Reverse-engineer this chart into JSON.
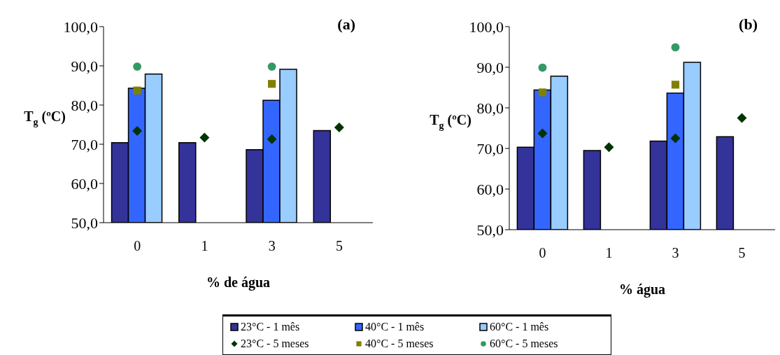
{
  "chart_data": [
    {
      "type": "bar",
      "title": "(a)",
      "xlabel": "% de água",
      "ylabel": "T$_{g}$ (ºC)",
      "categories": [
        "0",
        "1",
        "3",
        "5"
      ],
      "ylim": [
        50,
        100
      ],
      "yticks": [
        {
          "value": 50,
          "label": "50,0"
        },
        {
          "value": 60,
          "label": "60,0"
        },
        {
          "value": 70,
          "label": "70,0"
        },
        {
          "value": 80,
          "label": "80,0"
        },
        {
          "value": 90,
          "label": "90,0"
        },
        {
          "value": 100,
          "label": "100,0"
        }
      ],
      "grid": false,
      "legend": "bottom",
      "series": [
        {
          "name": "23°C - 1 mês",
          "color": "#333399",
          "values": [
            70.4,
            70.4,
            68.6,
            73.5
          ]
        },
        {
          "name": "40°C - 1 mês",
          "color": "#3366ff",
          "values": [
            84.3,
            null,
            81.2,
            null
          ]
        },
        {
          "name": "60°C - 1 mês",
          "color": "#99ccff",
          "values": [
            87.9,
            null,
            89.1,
            null
          ]
        },
        {
          "name": "23°C - 5 meses",
          "type": "scatter",
          "marker": "diamond",
          "color": "#003300",
          "values": [
            73.4,
            71.7,
            71.3,
            74.3
          ]
        },
        {
          "name": "40°C - 5 meses",
          "type": "scatter",
          "marker": "square",
          "color": "#808000",
          "values": [
            83.7,
            null,
            85.4,
            null
          ]
        },
        {
          "name": "60°C - 5 meses",
          "type": "scatter",
          "marker": "circle",
          "color": "#339966",
          "values": [
            89.8,
            null,
            89.8,
            null
          ]
        }
      ]
    },
    {
      "type": "bar",
      "title": "(b)",
      "xlabel": "% água",
      "ylabel": "T$_{g}$ (ºC)",
      "categories": [
        "0",
        "1",
        "3",
        "5"
      ],
      "ylim": [
        50,
        100
      ],
      "yticks": [
        {
          "value": 50,
          "label": "50,0"
        },
        {
          "value": 60,
          "label": "60,0"
        },
        {
          "value": 70,
          "label": "70,0"
        },
        {
          "value": 80,
          "label": "80,0"
        },
        {
          "value": 90,
          "label": "90,0"
        },
        {
          "value": 100,
          "label": "100,0"
        }
      ],
      "grid": false,
      "series": [
        {
          "color": "#333399",
          "values": [
            70.3,
            69.5,
            71.8,
            72.9
          ]
        },
        {
          "color": "#3366ff",
          "values": [
            84.4,
            null,
            83.6,
            null
          ]
        },
        {
          "color": "#99ccff",
          "values": [
            87.8,
            null,
            91.2,
            null
          ]
        },
        {
          "type": "scatter",
          "marker": "diamond",
          "color": "#003300",
          "values": [
            73.7,
            70.3,
            72.5,
            77.5
          ]
        },
        {
          "type": "scatter",
          "marker": "square",
          "color": "#808000",
          "values": [
            83.8,
            null,
            85.7,
            null
          ]
        },
        {
          "type": "scatter",
          "marker": "circle",
          "color": "#339966",
          "values": [
            89.9,
            null,
            94.9,
            null
          ]
        }
      ]
    }
  ]
}
